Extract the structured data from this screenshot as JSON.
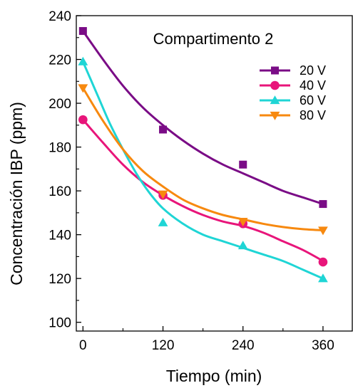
{
  "chart_data": {
    "type": "scatter",
    "title": "Compartimento 2",
    "xlabel": "Tiempo (min)",
    "ylabel": "Concentración IBP (ppm)",
    "xlim": [
      -10,
      405
    ],
    "ylim": [
      96,
      240
    ],
    "xticks": [
      0,
      120,
      240,
      360
    ],
    "yticks": [
      100,
      120,
      140,
      160,
      180,
      200,
      220,
      240
    ],
    "grid": false,
    "legend_position": "top-right",
    "fit_lines": true,
    "series": [
      {
        "name": "20 V",
        "color": "#7a0c86",
        "marker": "square",
        "x": [
          0,
          120,
          240,
          360
        ],
        "y": [
          233,
          188,
          172,
          154
        ],
        "fit": [
          [
            0,
            233
          ],
          [
            30,
            220
          ],
          [
            60,
            208
          ],
          [
            90,
            198
          ],
          [
            120,
            190
          ],
          [
            150,
            183
          ],
          [
            180,
            177
          ],
          [
            210,
            172
          ],
          [
            240,
            168
          ],
          [
            270,
            164
          ],
          [
            300,
            160
          ],
          [
            330,
            157
          ],
          [
            360,
            154
          ]
        ]
      },
      {
        "name": "40 V",
        "color": "#e8157a",
        "marker": "circle",
        "x": [
          0,
          120,
          240,
          360
        ],
        "y": [
          192.5,
          158,
          145,
          127.5
        ],
        "fit": [
          [
            0,
            192.5
          ],
          [
            30,
            182
          ],
          [
            60,
            172
          ],
          [
            90,
            164
          ],
          [
            120,
            158
          ],
          [
            150,
            153
          ],
          [
            180,
            149
          ],
          [
            210,
            146
          ],
          [
            240,
            144
          ],
          [
            270,
            141
          ],
          [
            300,
            137
          ],
          [
            330,
            133
          ],
          [
            360,
            128
          ]
        ]
      },
      {
        "name": "60 V",
        "color": "#1fd5d5",
        "marker": "triangle-up",
        "x": [
          0,
          120,
          240,
          360
        ],
        "y": [
          219,
          145.5,
          135,
          120
        ],
        "fit": [
          [
            0,
            219
          ],
          [
            20,
            205
          ],
          [
            40,
            191
          ],
          [
            60,
            179
          ],
          [
            80,
            168
          ],
          [
            100,
            159
          ],
          [
            120,
            152
          ],
          [
            150,
            145
          ],
          [
            180,
            140
          ],
          [
            210,
            137
          ],
          [
            240,
            134
          ],
          [
            270,
            131
          ],
          [
            300,
            128
          ],
          [
            330,
            124
          ],
          [
            360,
            120
          ]
        ]
      },
      {
        "name": "80 V",
        "color": "#f7890f",
        "marker": "triangle-down",
        "x": [
          0,
          120,
          240,
          360
        ],
        "y": [
          207,
          158.5,
          146,
          142
        ],
        "fit": [
          [
            0,
            207
          ],
          [
            30,
            192
          ],
          [
            60,
            179
          ],
          [
            90,
            169
          ],
          [
            120,
            162
          ],
          [
            150,
            156
          ],
          [
            180,
            152
          ],
          [
            210,
            149
          ],
          [
            240,
            147
          ],
          [
            270,
            145
          ],
          [
            300,
            143.5
          ],
          [
            330,
            142.5
          ],
          [
            360,
            142
          ]
        ]
      }
    ]
  }
}
